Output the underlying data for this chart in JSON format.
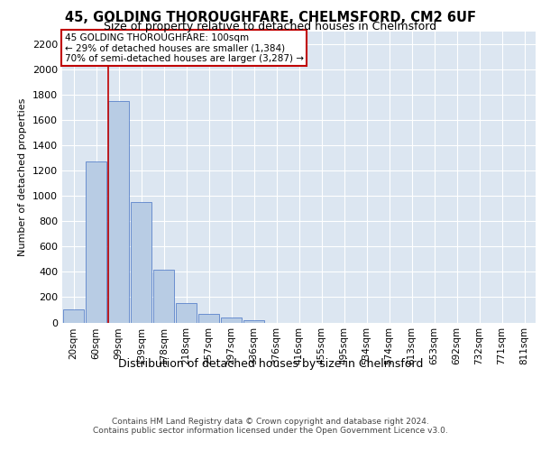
{
  "title": "45, GOLDING THOROUGHFARE, CHELMSFORD, CM2 6UF",
  "subtitle": "Size of property relative to detached houses in Chelmsford",
  "xlabel": "Distribution of detached houses by size in Chelmsford",
  "ylabel": "Number of detached properties",
  "categories": [
    "20sqm",
    "60sqm",
    "99sqm",
    "139sqm",
    "178sqm",
    "218sqm",
    "257sqm",
    "297sqm",
    "336sqm",
    "376sqm",
    "416sqm",
    "455sqm",
    "495sqm",
    "534sqm",
    "574sqm",
    "613sqm",
    "653sqm",
    "692sqm",
    "732sqm",
    "771sqm",
    "811sqm"
  ],
  "values": [
    100,
    1270,
    1750,
    950,
    415,
    150,
    70,
    40,
    20,
    0,
    0,
    0,
    0,
    0,
    0,
    0,
    0,
    0,
    0,
    0,
    0
  ],
  "bar_color": "#b8cce4",
  "bar_edge_color": "#4472c4",
  "highlight_line_color": "#c00000",
  "annotation_line1": "45 GOLDING THOROUGHFARE: 100sqm",
  "annotation_line2": "← 29% of detached houses are smaller (1,384)",
  "annotation_line3": "70% of semi-detached houses are larger (3,287) →",
  "annotation_box_color": "#ffffff",
  "annotation_box_edge_color": "#c00000",
  "ylim": [
    0,
    2300
  ],
  "yticks": [
    0,
    200,
    400,
    600,
    800,
    1000,
    1200,
    1400,
    1600,
    1800,
    2000,
    2200
  ],
  "background_color": "#dce6f1",
  "grid_color": "#ffffff",
  "footer_line1": "Contains HM Land Registry data © Crown copyright and database right 2024.",
  "footer_line2": "Contains public sector information licensed under the Open Government Licence v3.0."
}
